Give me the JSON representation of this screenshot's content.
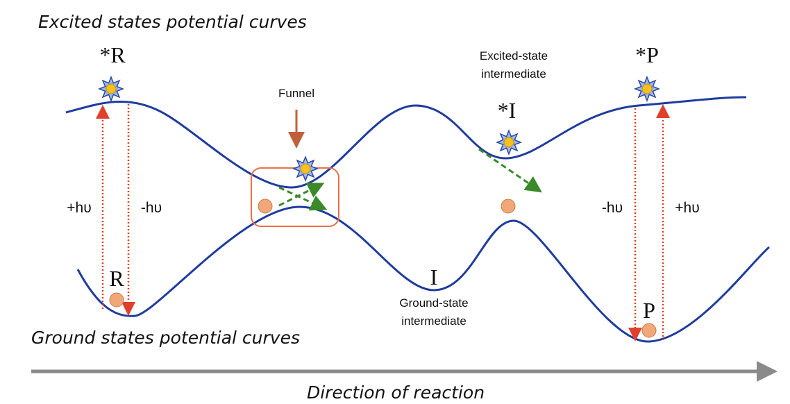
{
  "excited_title": "Excited states potential curves",
  "ground_title": "Ground states potential curves",
  "direction_label": "Direction of reaction",
  "funnel_label": "Funnel",
  "excited_intermediate_label": [
    "Excited-state",
    "intermediate"
  ],
  "ground_intermediate_label": [
    "Ground-state",
    "intermediate"
  ],
  "states": {
    "excited_R": "*R",
    "excited_I": "*I",
    "excited_P": "*P",
    "ground_R": "R",
    "ground_I": "I",
    "ground_P": "P"
  },
  "photons": [
    "+hυ",
    "-hυ",
    "-hυ",
    "+hυ"
  ]
}
